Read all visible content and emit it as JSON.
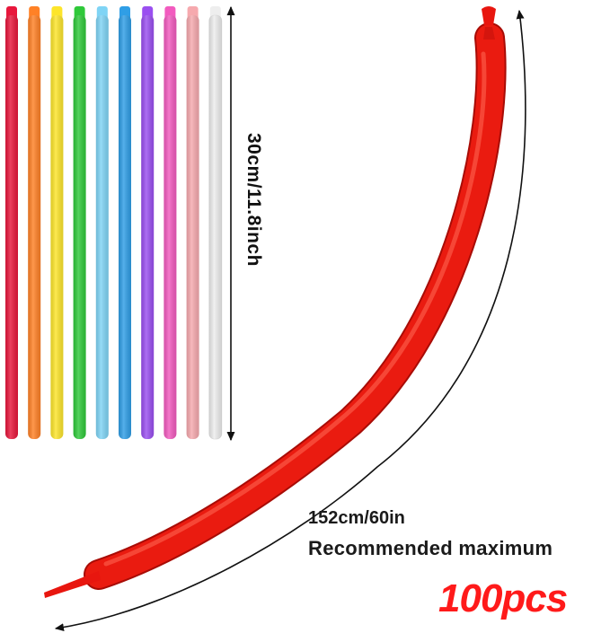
{
  "labels": {
    "unstretched_length": "30cm/11.8inch",
    "inflated_length": "152cm/60in",
    "inflated_note": "Recommended maximum",
    "quantity": "100pcs"
  },
  "balloon_colors": [
    "#e8173c",
    "#ff8126",
    "#fde52b",
    "#2fc93a",
    "#7fd4f5",
    "#2f9ee6",
    "#9a4ff0",
    "#f25bbf",
    "#f6a9ae",
    "#eeeeee"
  ],
  "inflated_balloon_color": "#e8160f",
  "accent_color": "#ff1a1a"
}
